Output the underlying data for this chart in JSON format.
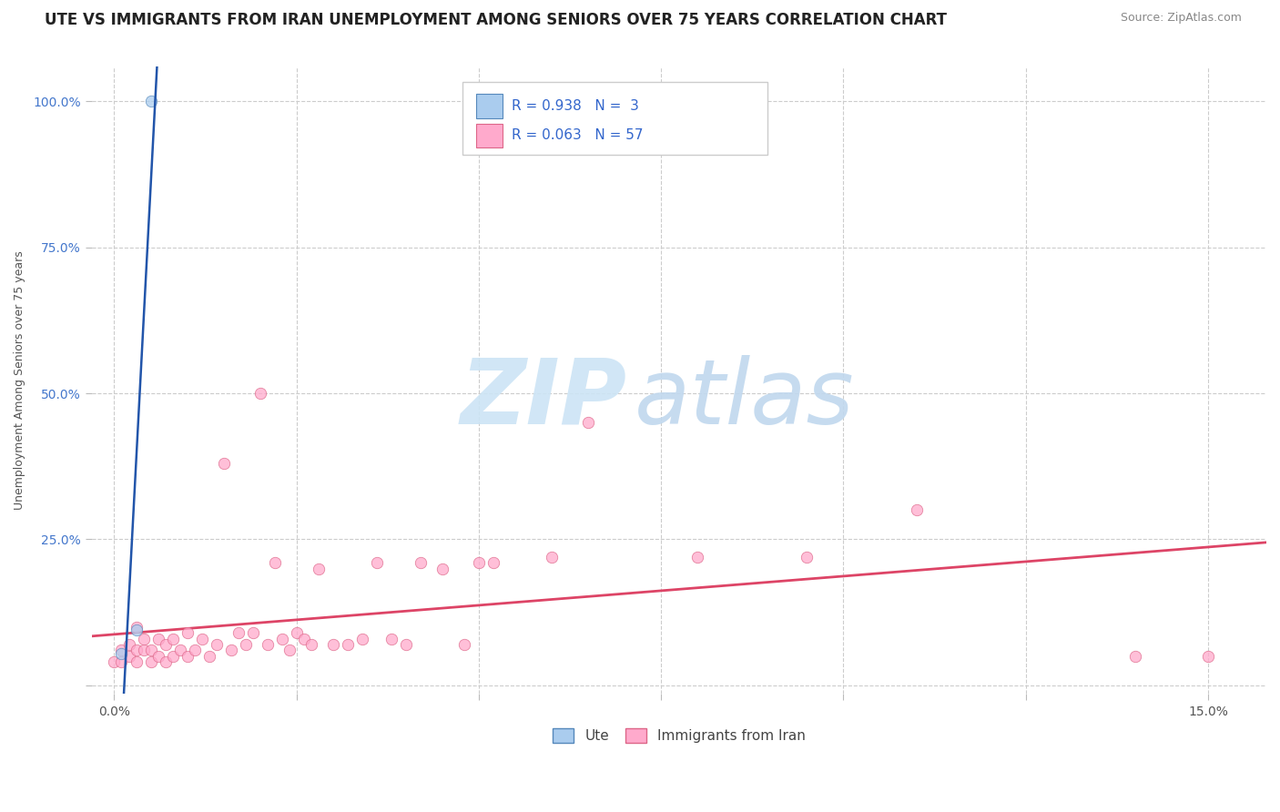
{
  "title": "UTE VS IMMIGRANTS FROM IRAN UNEMPLOYMENT AMONG SENIORS OVER 75 YEARS CORRELATION CHART",
  "source": "Source: ZipAtlas.com",
  "xlim": [
    -0.003,
    0.158
  ],
  "ylim": [
    -0.015,
    1.06
  ],
  "xlabel_ticks": [
    0.0,
    0.025,
    0.05,
    0.075,
    0.1,
    0.125,
    0.15
  ],
  "ylabel_ticks": [
    0.0,
    0.25,
    0.5,
    0.75,
    1.0
  ],
  "ylabel": "Unemployment Among Seniors over 75 years",
  "ute_R": 0.938,
  "ute_N": 3,
  "iran_R": 0.063,
  "iran_N": 57,
  "ute_marker_facecolor": "#aaccee",
  "ute_marker_edgecolor": "#5588bb",
  "ute_line_color": "#2255aa",
  "iran_marker_facecolor": "#ffaacc",
  "iran_marker_edgecolor": "#dd6688",
  "iran_line_color": "#dd4466",
  "ute_points_x": [
    0.001,
    0.003,
    0.005
  ],
  "ute_points_y": [
    0.055,
    0.095,
    1.0
  ],
  "iran_points_x": [
    0.0,
    0.001,
    0.001,
    0.002,
    0.002,
    0.003,
    0.003,
    0.003,
    0.004,
    0.004,
    0.005,
    0.005,
    0.006,
    0.006,
    0.007,
    0.007,
    0.008,
    0.008,
    0.009,
    0.01,
    0.01,
    0.011,
    0.012,
    0.013,
    0.014,
    0.015,
    0.016,
    0.017,
    0.018,
    0.019,
    0.02,
    0.021,
    0.022,
    0.023,
    0.024,
    0.025,
    0.026,
    0.027,
    0.028,
    0.03,
    0.032,
    0.034,
    0.036,
    0.038,
    0.04,
    0.042,
    0.045,
    0.048,
    0.05,
    0.052,
    0.06,
    0.065,
    0.08,
    0.095,
    0.11,
    0.14,
    0.15
  ],
  "iran_points_y": [
    0.04,
    0.04,
    0.06,
    0.05,
    0.07,
    0.04,
    0.06,
    0.1,
    0.06,
    0.08,
    0.04,
    0.06,
    0.05,
    0.08,
    0.04,
    0.07,
    0.05,
    0.08,
    0.06,
    0.05,
    0.09,
    0.06,
    0.08,
    0.05,
    0.07,
    0.38,
    0.06,
    0.09,
    0.07,
    0.09,
    0.5,
    0.07,
    0.21,
    0.08,
    0.06,
    0.09,
    0.08,
    0.07,
    0.2,
    0.07,
    0.07,
    0.08,
    0.21,
    0.08,
    0.07,
    0.21,
    0.2,
    0.07,
    0.21,
    0.21,
    0.22,
    0.45,
    0.22,
    0.22,
    0.3,
    0.05,
    0.05
  ],
  "watermark_zip_color": "#cce4f5",
  "watermark_atlas_color": "#c0d8ee",
  "title_fontsize": 12,
  "source_fontsize": 9,
  "axis_label_fontsize": 9,
  "tick_fontsize": 10,
  "background_color": "#ffffff",
  "grid_color": "#cccccc",
  "grid_linestyle": "--",
  "legend_label_1": "Ute",
  "legend_label_2": "Immigrants from Iran"
}
